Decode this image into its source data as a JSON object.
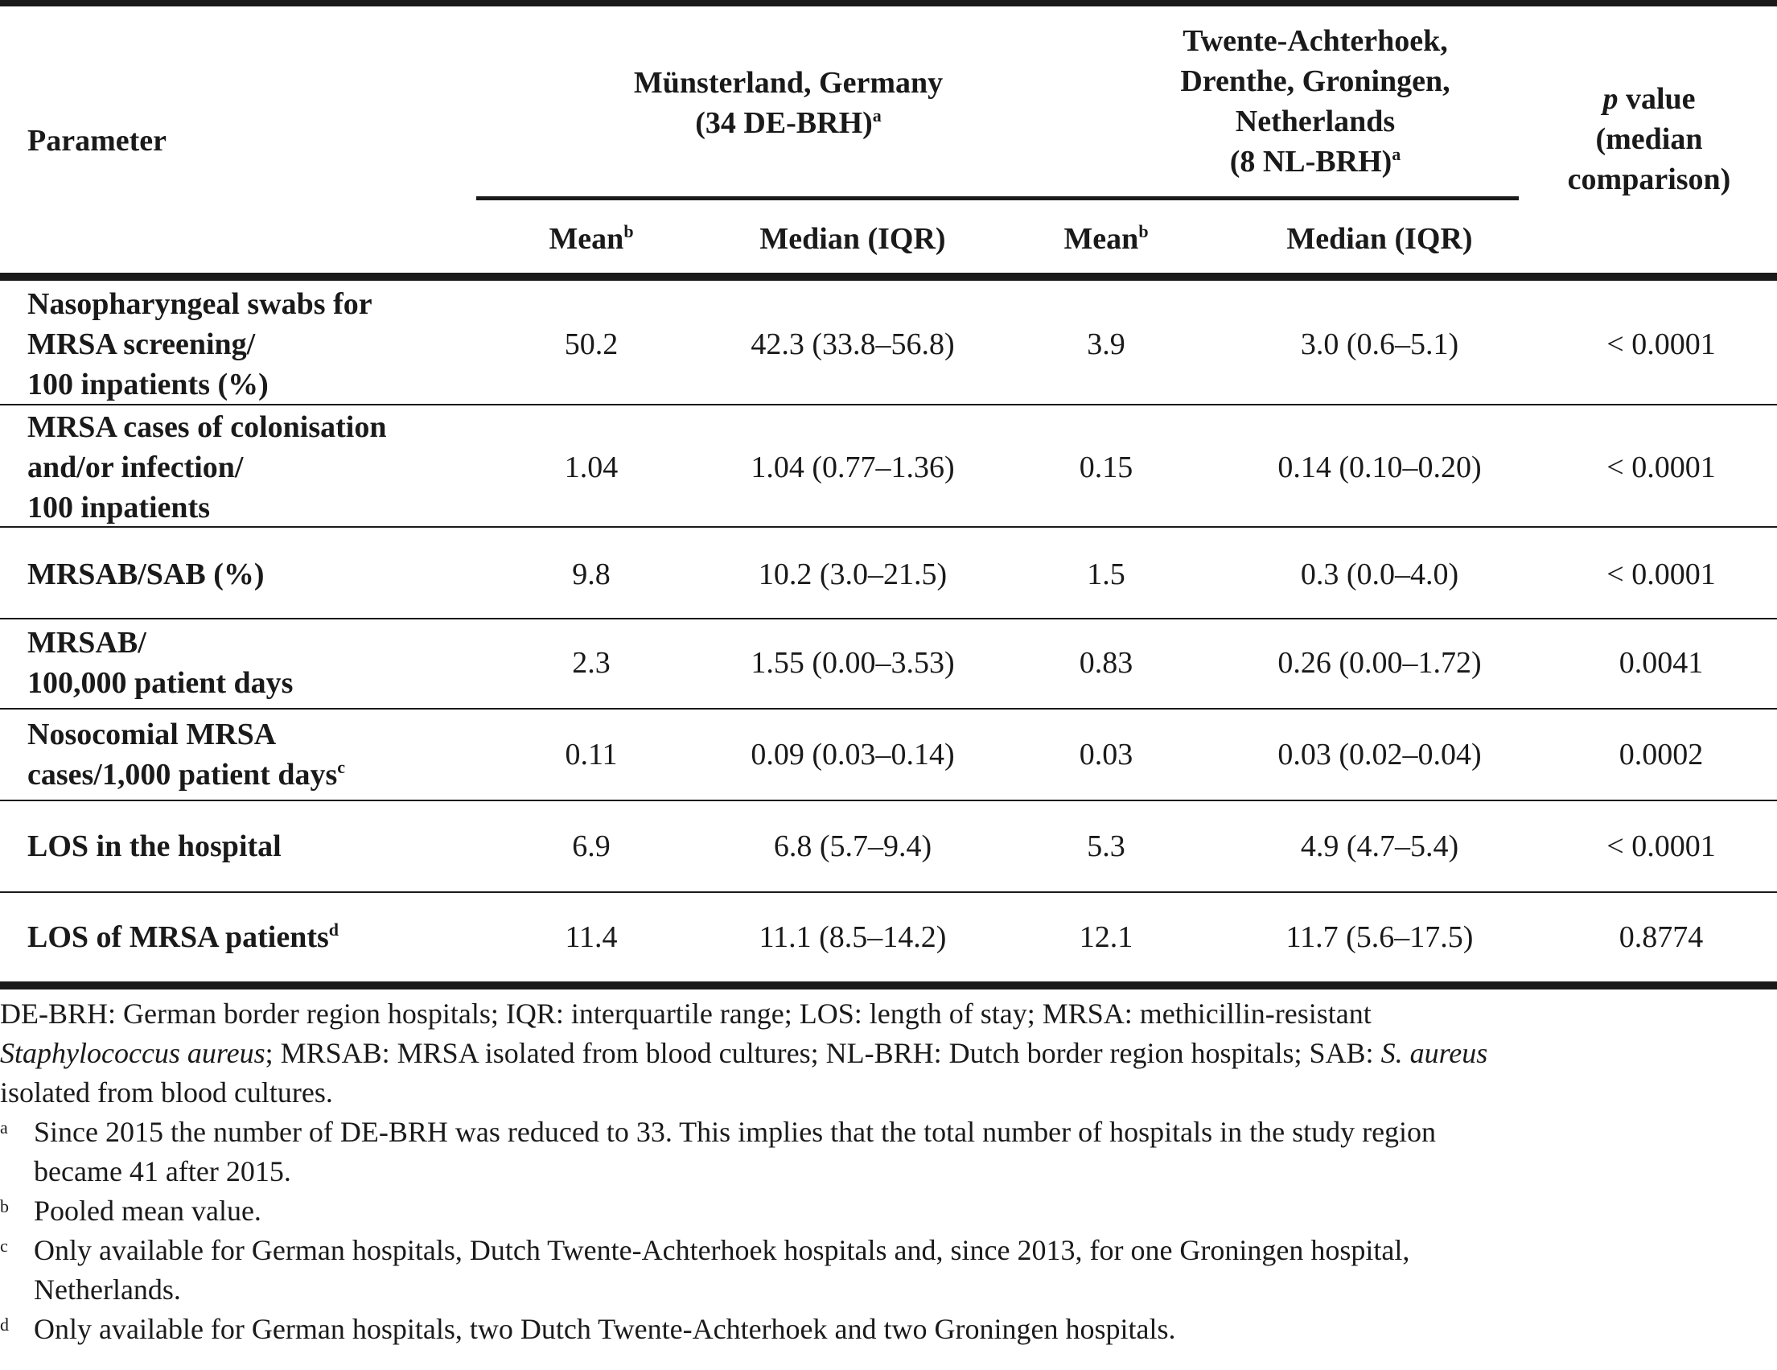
{
  "header": {
    "parameter": "Parameter",
    "de_group": "Münsterland, Germany",
    "de_group_count": "(34 DE-BRH)",
    "nl_group_lines": [
      "Twente-Achterhoek,",
      "Drenthe, Groningen,",
      "Netherlands",
      "(8 NL-BRH)"
    ],
    "p_value_italic": "p",
    "p_value_rest": " value",
    "p_value_lines": [
      "(median",
      "comparison)"
    ],
    "mean": "Mean",
    "median_iqr": "Median (IQR)",
    "sup_a": "a",
    "sup_b": "b"
  },
  "rows": [
    {
      "param_lines": [
        "Nasopharyngeal swabs for",
        "MRSA screening/",
        "100 inpatients (%)"
      ],
      "de_mean": "50.2",
      "de_median": "42.3 (33.8–56.8)",
      "nl_mean": "3.9",
      "nl_median": "3.0 (0.6–5.1)",
      "p": "< 0.0001"
    },
    {
      "param_lines": [
        "MRSA cases of colonisation",
        "and/or infection/",
        "100 inpatients"
      ],
      "de_mean": "1.04",
      "de_median": "1.04 (0.77–1.36)",
      "nl_mean": "0.15",
      "nl_median": "0.14 (0.10–0.20)",
      "p": "< 0.0001"
    },
    {
      "param_lines": [
        "MRSAB/SAB (%)"
      ],
      "de_mean": "9.8",
      "de_median": "10.2 (3.0–21.5)",
      "nl_mean": "1.5",
      "nl_median": "0.3 (0.0–4.0)",
      "p": "< 0.0001"
    },
    {
      "param_lines": [
        "MRSAB/",
        "100,000 patient days"
      ],
      "de_mean": "2.3",
      "de_median": "1.55 (0.00–3.53)",
      "nl_mean": "0.83",
      "nl_median": "0.26 (0.00–1.72)",
      "p": "0.0041"
    },
    {
      "param_lines": [
        "Nosocomial MRSA",
        "cases/1,000 patient days"
      ],
      "param_sup": "c",
      "de_mean": "0.11",
      "de_median": "0.09 (0.03–0.14)",
      "nl_mean": "0.03",
      "nl_median": "0.03 (0.02–0.04)",
      "p": "0.0002"
    },
    {
      "param_lines": [
        "LOS in the hospital"
      ],
      "de_mean": "6.9",
      "de_median": "6.8 (5.7–9.4)",
      "nl_mean": "5.3",
      "nl_median": "4.9 (4.7–5.4)",
      "p": "< 0.0001"
    },
    {
      "param_lines": [
        "LOS of MRSA patients"
      ],
      "param_sup": "d",
      "de_mean": "11.4",
      "de_median": "11.1 (8.5–14.2)",
      "nl_mean": "12.1",
      "nl_median": "11.7 (5.6–17.5)",
      "p": "0.8774"
    }
  ],
  "notes": {
    "abbr_1": "DE-BRH: German border region hospitals; IQR: interquartile range; LOS: length of stay; MRSA: methicillin-resistant",
    "abbr_2_italic": "Staphylococcus aureus",
    "abbr_2_rest": "; MRSAB: MRSA isolated from blood cultures; NL-BRH: Dutch border region hospitals; SAB: ",
    "abbr_2_italic_b": "S. aureus",
    "abbr_3": "isolated from blood cultures.",
    "footnotes": [
      {
        "mark": "a",
        "lines": [
          "Since 2015 the number of DE-BRH was reduced to 33. This implies that the total number of hospitals in the study region",
          "became 41 after 2015."
        ]
      },
      {
        "mark": "b",
        "lines": [
          "Pooled mean value."
        ]
      },
      {
        "mark": "c",
        "lines": [
          "Only available for German hospitals, Dutch Twente-Achterhoek hospitals and, since 2013, for one Groningen hospital,",
          "Netherlands."
        ]
      },
      {
        "mark": "d",
        "lines": [
          "Only available for German hospitals, two Dutch Twente-Achterhoek and two Groningen hospitals."
        ]
      }
    ]
  }
}
